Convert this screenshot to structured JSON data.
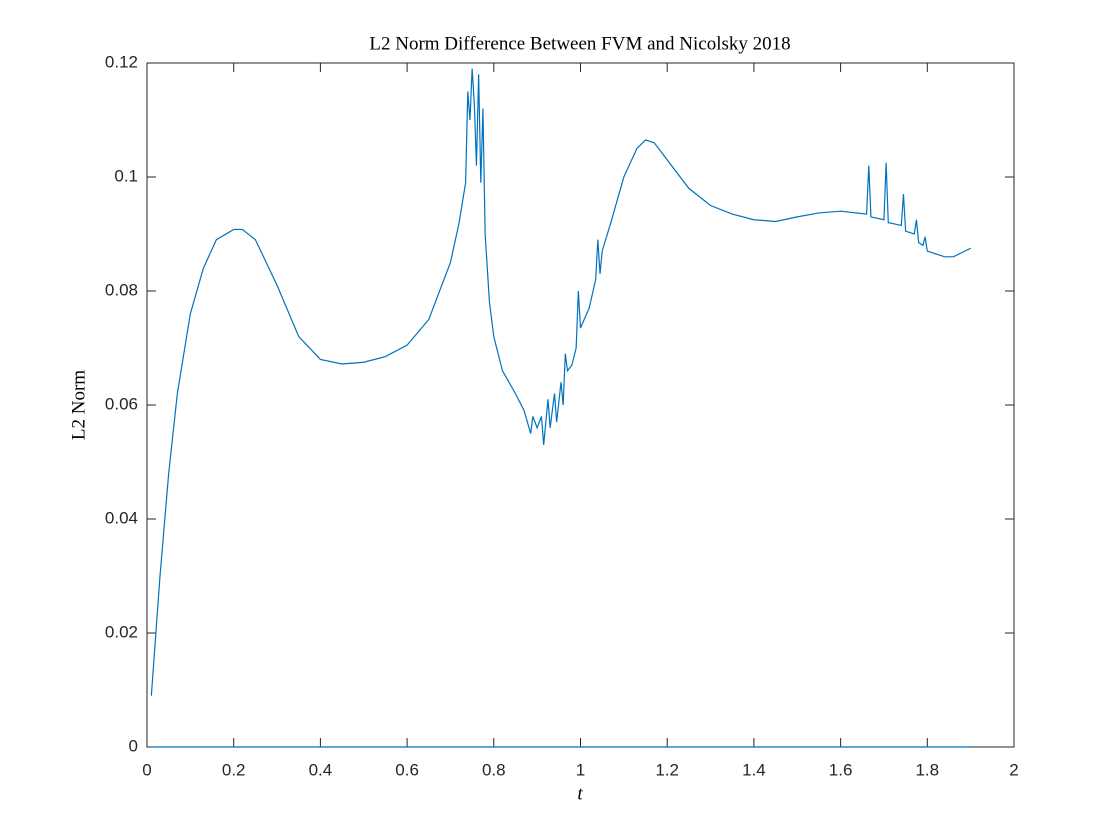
{
  "chart_data": {
    "type": "line",
    "title": "L2 Norm Difference Between FVM and Nicolsky 2018",
    "x_label": "t",
    "y_label": "L2 Norm",
    "xlim": [
      0,
      2
    ],
    "xticks": [
      0,
      0.2,
      0.4,
      0.6,
      0.8,
      1,
      1.2,
      1.4,
      1.6,
      1.8,
      2
    ],
    "ylim": [
      0,
      0.12
    ],
    "yticks": [
      0,
      0.02,
      0.04,
      0.06,
      0.08,
      0.1,
      0.12
    ],
    "grid": false,
    "series": [
      {
        "color": "#0072bd",
        "x": [
          0.01,
          0.03,
          0.05,
          0.07,
          0.1,
          0.13,
          0.16,
          0.2,
          0.22,
          0.25,
          0.3,
          0.35,
          0.4,
          0.45,
          0.5,
          0.55,
          0.6,
          0.65,
          0.7,
          0.72,
          0.735,
          0.74,
          0.745,
          0.75,
          0.755,
          0.76,
          0.765,
          0.77,
          0.775,
          0.78,
          0.79,
          0.8,
          0.82,
          0.85,
          0.87,
          0.885,
          0.89,
          0.9,
          0.91,
          0.915,
          0.925,
          0.93,
          0.94,
          0.945,
          0.955,
          0.96,
          0.965,
          0.97,
          0.98,
          0.99,
          0.995,
          1.0,
          1.02,
          1.035,
          1.04,
          1.045,
          1.05,
          1.07,
          1.1,
          1.13,
          1.15,
          1.17,
          1.2,
          1.25,
          1.3,
          1.35,
          1.4,
          1.45,
          1.5,
          1.55,
          1.6,
          1.66,
          1.665,
          1.67,
          1.7,
          1.705,
          1.71,
          1.74,
          1.745,
          1.75,
          1.77,
          1.775,
          1.78,
          1.79,
          1.795,
          1.8,
          1.84,
          1.86,
          1.9
        ],
        "values": [
          0.009,
          0.03,
          0.048,
          0.062,
          0.076,
          0.084,
          0.089,
          0.0908,
          0.0908,
          0.089,
          0.081,
          0.072,
          0.068,
          0.0672,
          0.0675,
          0.0685,
          0.0705,
          0.075,
          0.085,
          0.092,
          0.099,
          0.115,
          0.11,
          0.119,
          0.113,
          0.102,
          0.118,
          0.099,
          0.112,
          0.09,
          0.078,
          0.072,
          0.066,
          0.062,
          0.059,
          0.055,
          0.058,
          0.056,
          0.058,
          0.053,
          0.061,
          0.056,
          0.062,
          0.057,
          0.064,
          0.06,
          0.069,
          0.066,
          0.067,
          0.07,
          0.08,
          0.0735,
          0.077,
          0.082,
          0.089,
          0.083,
          0.087,
          0.092,
          0.1,
          0.105,
          0.1065,
          0.106,
          0.103,
          0.098,
          0.095,
          0.0935,
          0.0925,
          0.0922,
          0.093,
          0.0937,
          0.094,
          0.0935,
          0.102,
          0.093,
          0.0925,
          0.1025,
          0.092,
          0.0915,
          0.097,
          0.0905,
          0.09,
          0.0925,
          0.0885,
          0.088,
          0.0895,
          0.087,
          0.086,
          0.086,
          0.0875
        ]
      },
      {
        "color": "#0072bd",
        "x": [
          0.01,
          1.9
        ],
        "values": [
          0,
          0
        ]
      }
    ]
  }
}
